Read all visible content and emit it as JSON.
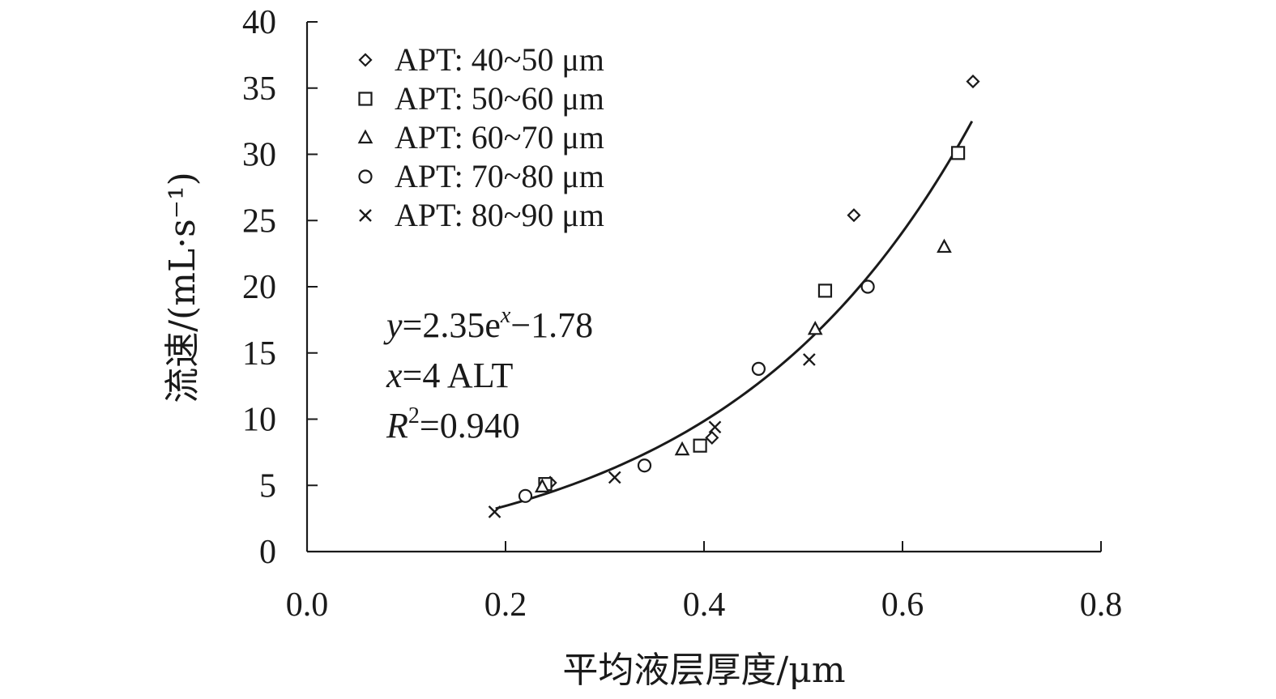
{
  "chart_data": {
    "type": "scatter",
    "title": "",
    "xlabel": "平均液层厚度/μm",
    "ylabel": "流速/(mL·s⁻¹)",
    "xlim": [
      0.0,
      0.8
    ],
    "ylim": [
      0,
      40
    ],
    "x_ticks": [
      "0.0",
      "0.2",
      "0.4",
      "0.6",
      "0.8"
    ],
    "y_ticks": [
      "0",
      "5",
      "10",
      "15",
      "20",
      "25",
      "30",
      "35",
      "40"
    ],
    "grid": false,
    "legend_position": "top-left",
    "series": [
      {
        "name": "APT: 40~50 μm",
        "marker": "diamond",
        "points": [
          [
            0.245,
            5.2
          ],
          [
            0.408,
            8.6
          ],
          [
            0.551,
            25.4
          ],
          [
            0.671,
            35.5
          ]
        ]
      },
      {
        "name": "APT: 50~60 μm",
        "marker": "square",
        "points": [
          [
            0.24,
            5.1
          ],
          [
            0.396,
            8.0
          ],
          [
            0.522,
            19.7
          ],
          [
            0.656,
            30.1
          ]
        ]
      },
      {
        "name": "APT: 60~70 μm",
        "marker": "triangle",
        "points": [
          [
            0.237,
            4.9
          ],
          [
            0.378,
            7.7
          ],
          [
            0.512,
            16.8
          ],
          [
            0.642,
            23.0
          ]
        ]
      },
      {
        "name": "APT: 70~80 μm",
        "marker": "circle",
        "points": [
          [
            0.22,
            4.2
          ],
          [
            0.34,
            6.5
          ],
          [
            0.455,
            13.8
          ],
          [
            0.565,
            20.0
          ]
        ]
      },
      {
        "name": "APT: 80~90 μm",
        "marker": "cross",
        "points": [
          [
            0.189,
            3.0
          ],
          [
            0.31,
            5.6
          ],
          [
            0.411,
            9.4
          ],
          [
            0.506,
            14.5
          ]
        ]
      }
    ],
    "fit": {
      "a": 2.35,
      "b": -1.78,
      "x_multiplier": 4,
      "x_range": [
        0.19,
        0.67
      ]
    },
    "equation": {
      "line1_var": "y",
      "line1_rest": "=2.35e",
      "line1_sup": "x",
      "line1_tail": "−1.78",
      "line2_var": "x",
      "line2_rest": "=4 ALT",
      "line3_var": "R",
      "line3_sup": "2",
      "line3_rest": "=0.940"
    }
  }
}
